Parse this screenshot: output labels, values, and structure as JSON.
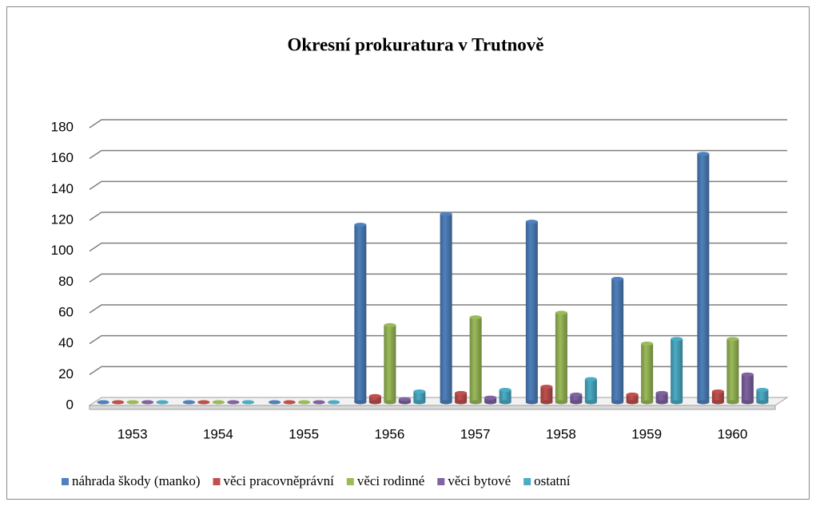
{
  "chart_data": {
    "type": "bar3d",
    "title": "Okresní prokuratura v Trutnově",
    "categories": [
      "1953",
      "1954",
      "1955",
      "1956",
      "1957",
      "1958",
      "1959",
      "1960"
    ],
    "series": [
      {
        "name": "náhrada škody (manko)",
        "color": "#4f81bd",
        "values": [
          0,
          0,
          0,
          115,
          122,
          117,
          80,
          161
        ]
      },
      {
        "name": "věci pracovněprávní",
        "color": "#c0504d",
        "values": [
          0,
          0,
          0,
          4,
          6,
          10,
          5,
          7
        ]
      },
      {
        "name": "věci rodinné",
        "color": "#9bbb59",
        "values": [
          0,
          0,
          0,
          50,
          55,
          58,
          38,
          41
        ]
      },
      {
        "name": "věci bytové",
        "color": "#8064a2",
        "values": [
          0,
          0,
          0,
          2,
          3,
          5,
          6,
          18
        ]
      },
      {
        "name": "ostatní",
        "color": "#4bacc6",
        "values": [
          0,
          0,
          0,
          7,
          8,
          15,
          41,
          8
        ]
      }
    ],
    "ylim": [
      0,
      180
    ],
    "yticks": [
      0,
      20,
      40,
      60,
      80,
      100,
      120,
      140,
      160,
      180
    ],
    "grid": true,
    "legend": "bottom"
  }
}
